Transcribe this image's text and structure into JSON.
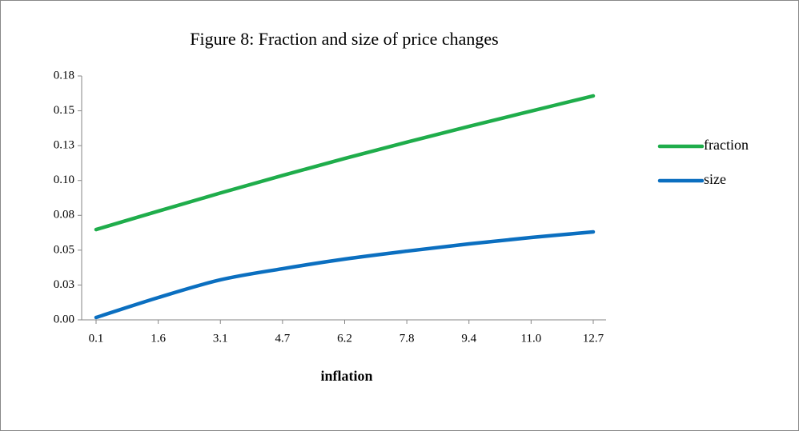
{
  "chart_data": {
    "type": "line",
    "title": "Figure 8: Fraction and size of price changes",
    "xlabel": "inflation",
    "categories": [
      "0.1",
      "1.6",
      "3.1",
      "4.7",
      "6.2",
      "7.8",
      "9.4",
      "11.0",
      "12.7"
    ],
    "series": [
      {
        "name": "fraction",
        "color": "#1fad4b",
        "values": [
          0.0648,
          0.078,
          0.091,
          0.1036,
          0.1158,
          0.1275,
          0.1388,
          0.1498,
          0.1607
        ]
      },
      {
        "name": "size",
        "color": "#0b6fc0",
        "values": [
          0.0017,
          0.016,
          0.0287,
          0.0367,
          0.0436,
          0.0493,
          0.0545,
          0.0591,
          0.0631
        ]
      }
    ],
    "ylim": [
      0,
      0.175
    ],
    "yticks": [
      {
        "value": 0,
        "label": "0.00"
      },
      {
        "value": 0.025,
        "label": "0.03"
      },
      {
        "value": 0.05,
        "label": "0.05"
      },
      {
        "value": 0.075,
        "label": "0.08"
      },
      {
        "value": 0.1,
        "label": "0.10"
      },
      {
        "value": 0.125,
        "label": "0.13"
      },
      {
        "value": 0.15,
        "label": "0.15"
      },
      {
        "value": 0.175,
        "label": "0.18"
      }
    ],
    "legend": "right"
  }
}
